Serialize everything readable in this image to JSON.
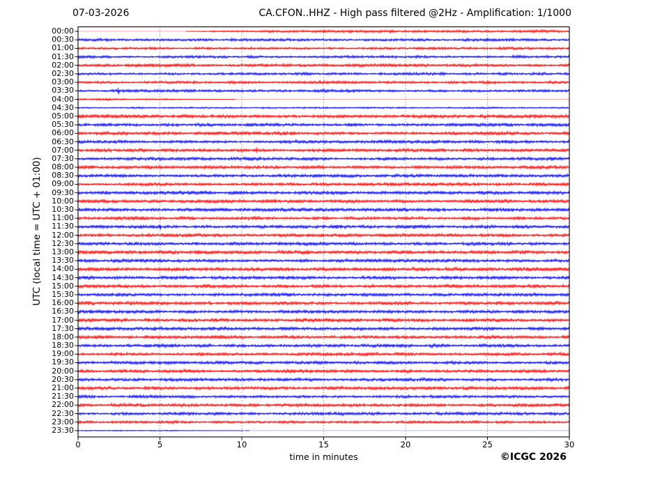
{
  "header": {
    "date_label": "07-03-2026",
    "station_label": "CA.CFON..HHZ - High pass filtered @2Hz - Amplification: 1/1000"
  },
  "footer": {
    "copyright": "©ICGC 2026"
  },
  "chart_data": {
    "type": "line",
    "subtype": "seismogram-helicorder-dayplot",
    "date": "07-03-2026",
    "title": "CA.CFON..HHZ - High pass filtered @2Hz - Amplification: 1/1000",
    "xlabel": "time in minutes",
    "ylabel": "UTC (local time = UTC + 01:00)",
    "xlim": [
      0,
      30
    ],
    "x_ticks": [
      0,
      5,
      10,
      15,
      20,
      25,
      30
    ],
    "row_interval_minutes": 30,
    "grid": "vertical dotted lines at 5-minute intervals",
    "legend": "none",
    "colors": {
      "red": "#ff0000",
      "blue": "#0000ff",
      "grid": "#888888",
      "frame": "#000000"
    },
    "rows": [
      {
        "label": "00:00",
        "color": "red",
        "env": [
          [
            0,
            0.12
          ],
          [
            6.5,
            0.15
          ],
          [
            8,
            1.2
          ],
          [
            12,
            1.7
          ],
          [
            30,
            1.9
          ]
        ],
        "spikes": []
      },
      {
        "label": "00:30",
        "color": "blue",
        "env": [
          [
            0,
            1.8
          ],
          [
            30,
            1.9
          ]
        ],
        "spikes": []
      },
      {
        "label": "01:00",
        "color": "red",
        "env": [
          [
            0,
            1.6
          ],
          [
            30,
            1.7
          ]
        ],
        "spikes": []
      },
      {
        "label": "01:30",
        "color": "blue",
        "env": [
          [
            0,
            1.7
          ],
          [
            30,
            1.8
          ]
        ],
        "spikes": []
      },
      {
        "label": "02:00",
        "color": "red",
        "env": [
          [
            0,
            2.1
          ],
          [
            30,
            2.2
          ]
        ],
        "spikes": []
      },
      {
        "label": "02:30",
        "color": "blue",
        "env": [
          [
            0,
            1.8
          ],
          [
            30,
            1.8
          ]
        ],
        "spikes": []
      },
      {
        "label": "03:00",
        "color": "red",
        "env": [
          [
            0,
            1.8
          ],
          [
            30,
            1.9
          ]
        ],
        "spikes": []
      },
      {
        "label": "03:30",
        "color": "blue",
        "env": [
          [
            0,
            1.8
          ],
          [
            30,
            1.9
          ]
        ],
        "spikes": [
          {
            "min": 2.45,
            "up": 4.5,
            "down": 5.5
          }
        ]
      },
      {
        "label": "04:00",
        "color": "red",
        "env": [
          [
            0,
            1.4
          ],
          [
            5,
            1.1
          ],
          [
            8,
            0.35
          ],
          [
            10,
            0.12
          ],
          [
            30,
            0.12
          ]
        ],
        "spikes": []
      },
      {
        "label": "04:30",
        "color": "blue",
        "env": [
          [
            0,
            1.1
          ],
          [
            30,
            1.2
          ]
        ],
        "spikes": []
      },
      {
        "label": "05:00",
        "color": "red",
        "env": [
          [
            0,
            2.3
          ],
          [
            30,
            2.4
          ]
        ],
        "spikes": []
      },
      {
        "label": "05:30",
        "color": "blue",
        "env": [
          [
            0,
            2.1
          ],
          [
            30,
            2.2
          ]
        ],
        "spikes": []
      },
      {
        "label": "06:00",
        "color": "red",
        "env": [
          [
            0,
            2.3
          ],
          [
            30,
            2.3
          ]
        ],
        "spikes": []
      },
      {
        "label": "06:30",
        "color": "blue",
        "env": [
          [
            0,
            2.1
          ],
          [
            30,
            2.2
          ]
        ],
        "spikes": []
      },
      {
        "label": "07:00",
        "color": "red",
        "env": [
          [
            0,
            2.2
          ],
          [
            30,
            2.2
          ]
        ],
        "spikes": [
          {
            "min": 10.9,
            "up": 4.5,
            "down": 4.0
          }
        ]
      },
      {
        "label": "07:30",
        "color": "blue",
        "env": [
          [
            0,
            2.2
          ],
          [
            30,
            2.2
          ]
        ],
        "spikes": []
      },
      {
        "label": "08:00",
        "color": "red",
        "env": [
          [
            0,
            2.3
          ],
          [
            30,
            2.3
          ]
        ],
        "spikes": []
      },
      {
        "label": "08:30",
        "color": "blue",
        "env": [
          [
            0,
            2.2
          ],
          [
            30,
            2.2
          ]
        ],
        "spikes": []
      },
      {
        "label": "09:00",
        "color": "red",
        "env": [
          [
            0,
            2.1
          ],
          [
            30,
            2.2
          ]
        ],
        "spikes": []
      },
      {
        "label": "09:30",
        "color": "blue",
        "env": [
          [
            0,
            2.3
          ],
          [
            30,
            2.3
          ]
        ],
        "spikes": []
      },
      {
        "label": "10:00",
        "color": "red",
        "env": [
          [
            0,
            2.3
          ],
          [
            30,
            2.3
          ]
        ],
        "spikes": []
      },
      {
        "label": "10:30",
        "color": "blue",
        "env": [
          [
            0,
            2.4
          ],
          [
            30,
            2.4
          ]
        ],
        "spikes": []
      },
      {
        "label": "11:00",
        "color": "red",
        "env": [
          [
            0,
            2.2
          ],
          [
            30,
            2.2
          ]
        ],
        "spikes": []
      },
      {
        "label": "11:30",
        "color": "blue",
        "env": [
          [
            0,
            2.3
          ],
          [
            30,
            2.3
          ]
        ],
        "spikes": [
          {
            "min": 5.0,
            "up": 2.0,
            "down": 4.5
          }
        ]
      },
      {
        "label": "12:00",
        "color": "red",
        "env": [
          [
            0,
            2.2
          ],
          [
            30,
            2.2
          ]
        ],
        "spikes": []
      },
      {
        "label": "12:30",
        "color": "blue",
        "env": [
          [
            0,
            2.2
          ],
          [
            30,
            2.2
          ]
        ],
        "spikes": []
      },
      {
        "label": "13:00",
        "color": "red",
        "env": [
          [
            0,
            2.5
          ],
          [
            30,
            2.5
          ]
        ],
        "spikes": []
      },
      {
        "label": "13:30",
        "color": "blue",
        "env": [
          [
            0,
            2.3
          ],
          [
            30,
            2.3
          ]
        ],
        "spikes": []
      },
      {
        "label": "14:00",
        "color": "red",
        "env": [
          [
            0,
            2.4
          ],
          [
            30,
            2.4
          ]
        ],
        "spikes": []
      },
      {
        "label": "14:30",
        "color": "blue",
        "env": [
          [
            0,
            2.2
          ],
          [
            30,
            2.2
          ]
        ],
        "spikes": []
      },
      {
        "label": "15:00",
        "color": "red",
        "env": [
          [
            0,
            2.3
          ],
          [
            30,
            2.3
          ]
        ],
        "spikes": []
      },
      {
        "label": "15:30",
        "color": "blue",
        "env": [
          [
            0,
            2.2
          ],
          [
            30,
            2.2
          ]
        ],
        "spikes": []
      },
      {
        "label": "16:00",
        "color": "red",
        "env": [
          [
            0,
            2.4
          ],
          [
            30,
            2.4
          ]
        ],
        "spikes": []
      },
      {
        "label": "16:30",
        "color": "blue",
        "env": [
          [
            0,
            2.2
          ],
          [
            30,
            2.2
          ]
        ],
        "spikes": []
      },
      {
        "label": "17:00",
        "color": "red",
        "env": [
          [
            0,
            2.4
          ],
          [
            30,
            2.4
          ]
        ],
        "spikes": []
      },
      {
        "label": "17:30",
        "color": "blue",
        "env": [
          [
            0,
            2.3
          ],
          [
            30,
            2.3
          ]
        ],
        "spikes": []
      },
      {
        "label": "18:00",
        "color": "red",
        "env": [
          [
            0,
            2.3
          ],
          [
            30,
            2.3
          ]
        ],
        "spikes": []
      },
      {
        "label": "18:30",
        "color": "blue",
        "env": [
          [
            0,
            2.2
          ],
          [
            30,
            2.2
          ]
        ],
        "spikes": []
      },
      {
        "label": "19:00",
        "color": "red",
        "env": [
          [
            0,
            2.2
          ],
          [
            30,
            2.2
          ]
        ],
        "spikes": []
      },
      {
        "label": "19:30",
        "color": "blue",
        "env": [
          [
            0,
            2.1
          ],
          [
            30,
            2.1
          ]
        ],
        "spikes": []
      },
      {
        "label": "20:00",
        "color": "red",
        "env": [
          [
            0,
            2.2
          ],
          [
            30,
            2.2
          ]
        ],
        "spikes": []
      },
      {
        "label": "20:30",
        "color": "blue",
        "env": [
          [
            0,
            2.1
          ],
          [
            30,
            2.1
          ]
        ],
        "spikes": []
      },
      {
        "label": "21:00",
        "color": "red",
        "env": [
          [
            0,
            2.2
          ],
          [
            30,
            2.2
          ]
        ],
        "spikes": []
      },
      {
        "label": "21:30",
        "color": "blue",
        "env": [
          [
            0,
            2.0
          ],
          [
            30,
            2.0
          ]
        ],
        "spikes": []
      },
      {
        "label": "22:00",
        "color": "red",
        "env": [
          [
            0,
            2.1
          ],
          [
            30,
            2.1
          ]
        ],
        "spikes": []
      },
      {
        "label": "22:30",
        "color": "blue",
        "env": [
          [
            0,
            2.0
          ],
          [
            30,
            2.0
          ]
        ],
        "spikes": []
      },
      {
        "label": "23:00",
        "color": "red",
        "env": [
          [
            0,
            1.7
          ],
          [
            30,
            1.7
          ]
        ],
        "spikes": []
      },
      {
        "label": "23:30",
        "color": "blue",
        "env": [
          [
            0,
            0.8
          ],
          [
            6,
            0.6
          ],
          [
            10,
            0.2
          ],
          [
            12,
            0.1
          ],
          [
            30,
            0.1
          ]
        ],
        "spikes": []
      }
    ]
  }
}
